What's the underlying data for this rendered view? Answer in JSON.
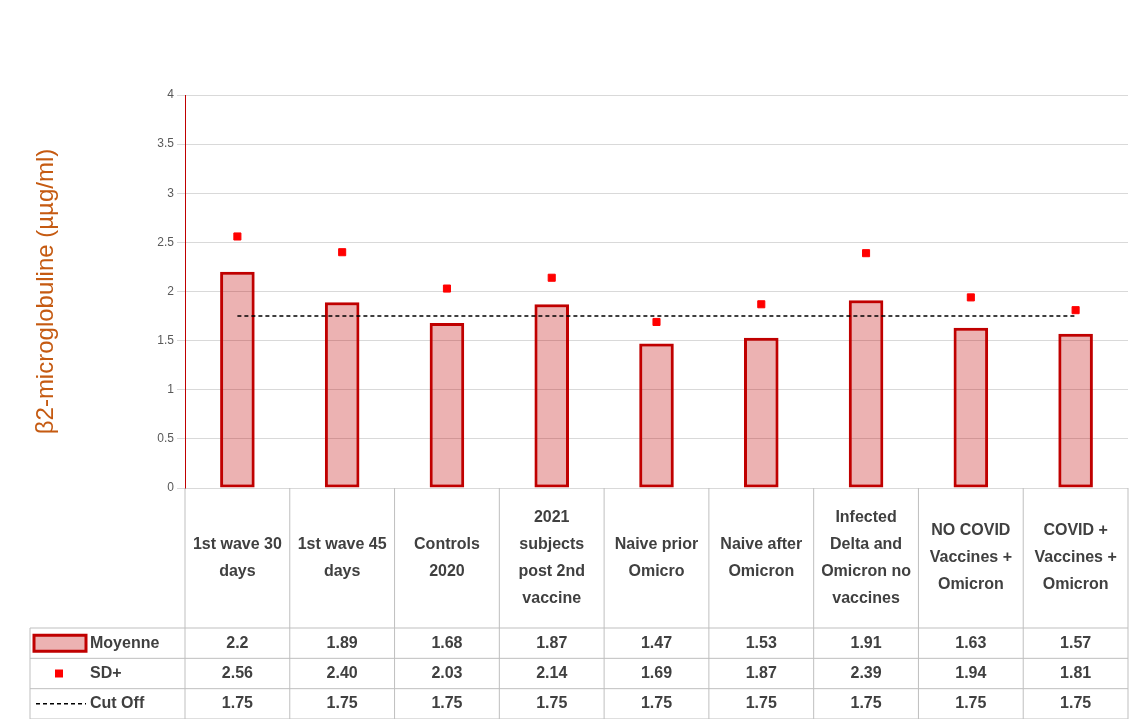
{
  "chart_data": {
    "type": "bar",
    "ylabel": "β2-microglobuline (µµg/ml)",
    "categories": [
      "1st wave 30 days",
      "1st wave 45 days",
      "Controls 2020",
      "2021 subjects post 2nd vaccine",
      "Naive prior Omicro",
      "Naive after Omicron",
      "Infected Delta and Omicron no vaccines",
      "NO COVID Vaccines + Omicron",
      "COVID + Vaccines + Omicron"
    ],
    "series": [
      {
        "name": "Moyenne",
        "color": "#c00000",
        "values": [
          2.2,
          1.89,
          1.68,
          1.87,
          1.47,
          1.53,
          1.91,
          1.63,
          1.57
        ],
        "value_labels": [
          "2.2",
          "1.89",
          "1.68",
          "1.87",
          "1.47",
          "1.53",
          "1.91",
          "1.63",
          "1.57"
        ]
      },
      {
        "name": "SD+",
        "type": "scatter",
        "marker": "square",
        "color": "#ff0000",
        "x": [
          "1st wave 30 days",
          "1st wave 45 days",
          "Controls 2020",
          "2021 subjects post 2nd vaccine",
          "Naive prior Omicro",
          "Naive after Omicron",
          "Infected Delta and Omicron no vaccines",
          "NO COVID Vaccines + Omicron",
          "COVID + Vaccines + Omicron"
        ],
        "values": [
          2.56,
          2.4,
          2.03,
          2.14,
          1.69,
          1.87,
          2.39,
          1.94,
          1.81
        ],
        "value_labels": [
          "2.56",
          "2.40",
          "2.03",
          "2.14",
          "1.69",
          "1.87",
          "2.39",
          "1.94",
          "1.81"
        ]
      },
      {
        "name": "Cut Off",
        "type": "line",
        "line_style": "dashed",
        "color": "#000000",
        "values": [
          1.75,
          1.75,
          1.75,
          1.75,
          1.75,
          1.75,
          1.75,
          1.75,
          1.75
        ],
        "value_labels": [
          "1.75",
          "1.75",
          "1.75",
          "1.75",
          "1.75",
          "1.75",
          "1.75",
          "1.75",
          "1.75"
        ]
      }
    ],
    "legend": "bottom left",
    "ylim": [
      0,
      4
    ],
    "yticks": [
      0,
      0.5,
      1,
      1.5,
      2,
      2.5,
      3,
      3.5,
      4
    ],
    "grid": "y"
  }
}
